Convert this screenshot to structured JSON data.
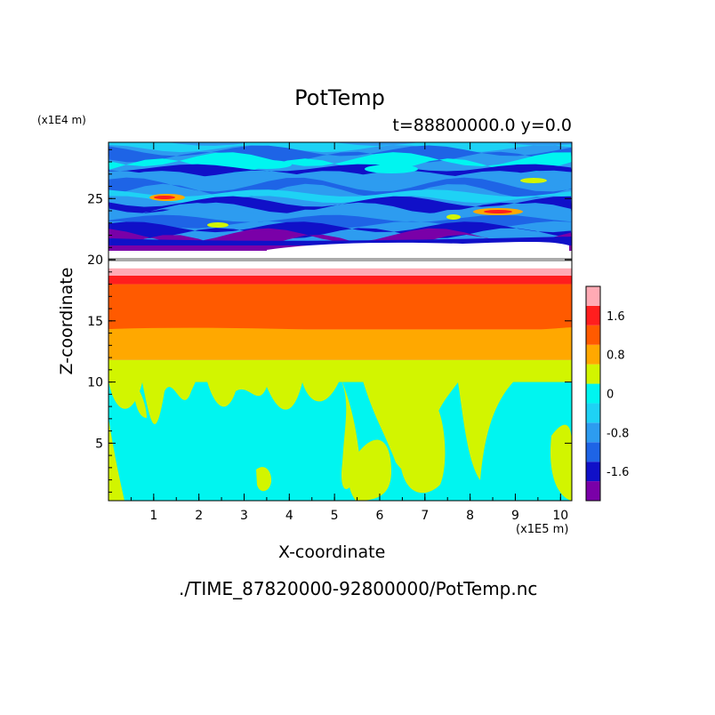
{
  "chart_data": {
    "type": "heatmap",
    "title": "PotTemp",
    "subtitle": "t=88800000.0 y=0.0",
    "xlabel": "X-coordinate",
    "ylabel": "Z-coordinate",
    "x_scale_note": "(x1E5 m)",
    "y_scale_note": "(x1E4 m)",
    "xlim": [
      0,
      10.25
    ],
    "ylim": [
      0.3,
      29.6
    ],
    "x_ticks": [
      "1",
      "2",
      "3",
      "4",
      "5",
      "6",
      "7",
      "8",
      "9",
      "10"
    ],
    "y_ticks": [
      "5",
      "10",
      "15",
      "20",
      "25"
    ],
    "x_tick_values": [
      1,
      2,
      3,
      4,
      5,
      6,
      7,
      8,
      9,
      10
    ],
    "y_tick_values": [
      5,
      10,
      15,
      20,
      25
    ],
    "colorbar": {
      "tick_labels": [
        "1.6",
        "0.8",
        "0",
        "-0.8",
        "-1.6"
      ],
      "tick_values": [
        1.6,
        0.8,
        0,
        -0.8,
        -1.6
      ],
      "levels": [
        -2.0,
        -1.6,
        -1.2,
        -0.8,
        -0.4,
        0.0,
        0.4,
        0.8,
        1.2,
        1.6,
        2.0
      ],
      "colors": [
        "#7a00a8",
        "#1010c8",
        "#1e64e6",
        "#2d9cf0",
        "#1ed2f5",
        "#00f5f0",
        "#d2f500",
        "#ffa800",
        "#ff5a00",
        "#ff1e1e",
        "#ffaab4"
      ]
    },
    "layers": [
      {
        "z_range": [
          0.3,
          11.8
        ],
        "dominant_values": [
          -0.2,
          0.2
        ],
        "description_colors": [
          "#00f5f0",
          "#d2f500"
        ]
      },
      {
        "z_range": [
          11.8,
          14.3
        ],
        "value": 1.0
      },
      {
        "z_range": [
          14.3,
          18.0
        ],
        "value": 1.4
      },
      {
        "z_range": [
          18.0,
          18.7
        ],
        "value": 1.8
      },
      {
        "z_range": [
          18.7,
          19.3
        ],
        "value": 2.2
      },
      {
        "z_range": [
          19.3,
          21.3
        ],
        "value": null
      },
      {
        "z_range": [
          21.3,
          29.6
        ],
        "value_range": [
          -2.0,
          0.8
        ]
      }
    ]
  },
  "filename": "./TIME_87820000-92800000/PotTemp.nc"
}
